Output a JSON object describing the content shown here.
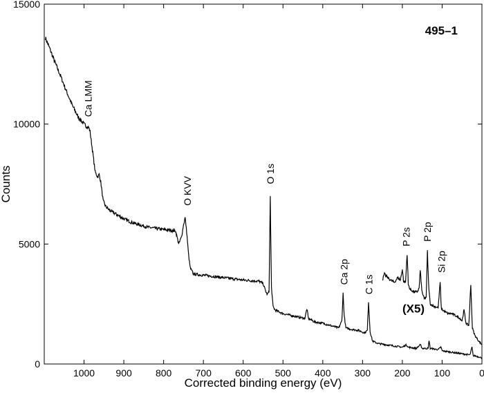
{
  "chart_data": {
    "type": "line",
    "title": "495–1",
    "xlabel": "Corrected binding energy (eV)",
    "ylabel": "Counts",
    "xlim": [
      1100,
      0
    ],
    "ylim": [
      0,
      15000
    ],
    "x_reversed": true,
    "grid": false,
    "x_ticks": [
      1000,
      900,
      800,
      700,
      600,
      500,
      400,
      300,
      200,
      100,
      0
    ],
    "x_tick_labels": [
      "1000",
      "900",
      "800",
      "700",
      "600",
      "500",
      "400",
      "300",
      "200",
      "100",
      "0"
    ],
    "y_ticks": [
      0,
      5000,
      10000,
      15000
    ],
    "y_tick_labels": [
      "0",
      "5000",
      "10000",
      "15000"
    ],
    "series": [
      {
        "points": [
          [
            1097,
            13600
          ],
          [
            1085,
            13100
          ],
          [
            1075,
            12650
          ],
          [
            1060,
            12050
          ],
          [
            1045,
            11400
          ],
          [
            1030,
            10800
          ],
          [
            1015,
            10300
          ],
          [
            1000,
            10000
          ],
          [
            993,
            9900
          ],
          [
            988,
            9850
          ],
          [
            985,
            9700
          ],
          [
            978,
            8800
          ],
          [
            972,
            8000
          ],
          [
            966,
            7800
          ],
          [
            962,
            7900
          ],
          [
            958,
            7600
          ],
          [
            952,
            6800
          ],
          [
            945,
            6550
          ],
          [
            935,
            6400
          ],
          [
            920,
            6250
          ],
          [
            900,
            6050
          ],
          [
            880,
            5900
          ],
          [
            860,
            5800
          ],
          [
            840,
            5700
          ],
          [
            820,
            5650
          ],
          [
            800,
            5600
          ],
          [
            785,
            5580
          ],
          [
            770,
            5550
          ],
          [
            762,
            5000
          ],
          [
            755,
            5300
          ],
          [
            750,
            5800
          ],
          [
            746,
            6100
          ],
          [
            742,
            5500
          ],
          [
            737,
            4500
          ],
          [
            733,
            4000
          ],
          [
            725,
            3750
          ],
          [
            700,
            3700
          ],
          [
            650,
            3600
          ],
          [
            600,
            3500
          ],
          [
            560,
            3450
          ],
          [
            550,
            3350
          ],
          [
            545,
            3100
          ],
          [
            540,
            2900
          ],
          [
            535,
            3000
          ],
          [
            532,
            7000
          ],
          [
            529,
            3200
          ],
          [
            525,
            2400
          ],
          [
            520,
            2250
          ],
          [
            500,
            2100
          ],
          [
            460,
            1950
          ],
          [
            445,
            1900
          ],
          [
            440,
            2300
          ],
          [
            436,
            1900
          ],
          [
            420,
            1750
          ],
          [
            400,
            1700
          ],
          [
            380,
            1600
          ],
          [
            360,
            1500
          ],
          [
            352,
            1800
          ],
          [
            349,
            2950
          ],
          [
            346,
            2000
          ],
          [
            342,
            1500
          ],
          [
            330,
            1450
          ],
          [
            310,
            1400
          ],
          [
            295,
            1300
          ],
          [
            288,
            1400
          ],
          [
            285,
            2600
          ],
          [
            281,
            1350
          ],
          [
            275,
            950
          ],
          [
            260,
            850
          ],
          [
            240,
            800
          ],
          [
            220,
            750
          ],
          [
            200,
            700
          ],
          [
            190,
            800
          ],
          [
            185,
            700
          ],
          [
            165,
            650
          ],
          [
            155,
            800
          ],
          [
            150,
            650
          ],
          [
            135,
            650
          ],
          [
            133,
            1000
          ],
          [
            130,
            650
          ],
          [
            110,
            600
          ],
          [
            103,
            700
          ],
          [
            100,
            550
          ],
          [
            80,
            500
          ],
          [
            60,
            450
          ],
          [
            40,
            400
          ],
          [
            30,
            380
          ],
          [
            25,
            700
          ],
          [
            22,
            350
          ],
          [
            15,
            330
          ],
          [
            5,
            280
          ],
          [
            0,
            250
          ]
        ]
      },
      {
        "points": [
          [
            250,
            3500
          ],
          [
            245,
            3750
          ],
          [
            240,
            3650
          ],
          [
            230,
            3500
          ],
          [
            220,
            3400
          ],
          [
            212,
            3600
          ],
          [
            205,
            3500
          ],
          [
            200,
            3950
          ],
          [
            197,
            3450
          ],
          [
            192,
            3400
          ],
          [
            188,
            4600
          ],
          [
            185,
            3300
          ],
          [
            180,
            3100
          ],
          [
            170,
            3000
          ],
          [
            163,
            3000
          ],
          [
            158,
            3150
          ],
          [
            155,
            3900
          ],
          [
            151,
            3050
          ],
          [
            145,
            2700
          ],
          [
            140,
            2800
          ],
          [
            137,
            4700
          ],
          [
            134,
            3300
          ],
          [
            130,
            2500
          ],
          [
            120,
            2400
          ],
          [
            110,
            2350
          ],
          [
            105,
            3400
          ],
          [
            102,
            2300
          ],
          [
            95,
            2200
          ],
          [
            85,
            2100
          ],
          [
            75,
            2100
          ],
          [
            65,
            2000
          ],
          [
            55,
            1900
          ],
          [
            50,
            1800
          ],
          [
            45,
            2250
          ],
          [
            40,
            1700
          ],
          [
            33,
            1600
          ],
          [
            28,
            3300
          ],
          [
            24,
            1500
          ],
          [
            18,
            1200
          ],
          [
            10,
            1000
          ],
          [
            5,
            900
          ],
          [
            0,
            800
          ]
        ]
      }
    ],
    "annotations": [
      {
        "text": "Ca LMM",
        "x": 990,
        "y": 10300,
        "rotate": true
      },
      {
        "text": "O KVV",
        "x": 740,
        "y": 6600,
        "rotate": true
      },
      {
        "text": "O 1s",
        "x": 532,
        "y": 7500,
        "rotate": true
      },
      {
        "text": "Ca 2p",
        "x": 347,
        "y": 3300,
        "rotate": true
      },
      {
        "text": "C 1s",
        "x": 284,
        "y": 2900,
        "rotate": true
      },
      {
        "text": "P 2s",
        "x": 190,
        "y": 4900,
        "rotate": true
      },
      {
        "text": "P 2p",
        "x": 137,
        "y": 5100,
        "rotate": true
      },
      {
        "text": "Si 2p",
        "x": 102,
        "y": 3800,
        "rotate": true
      },
      {
        "text": "(X5)",
        "x": 172,
        "y": 2150,
        "rotate": false,
        "bold": true
      }
    ]
  }
}
